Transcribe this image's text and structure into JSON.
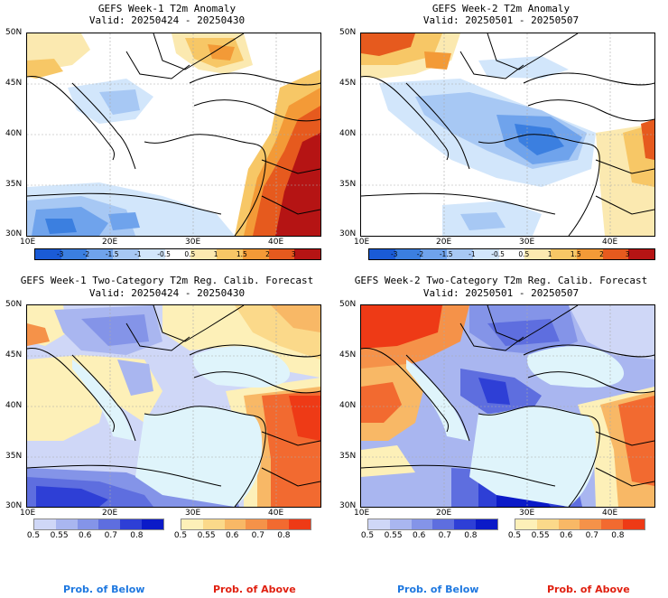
{
  "panels": [
    {
      "title1": "GEFS Week-1 T2m Anomaly",
      "title2": "Valid: 20250424 - 20250430"
    },
    {
      "title1": "GEFS Week-2 T2m Anomaly",
      "title2": "Valid: 20250501 - 20250507"
    },
    {
      "title1": "GEFS Week-1 Two-Category T2m Reg. Calib. Forecast",
      "title2": "Valid: 20250424 - 20250430"
    },
    {
      "title1": "GEFS Week-2 Two-Category T2m Reg. Calib. Forecast",
      "title2": "Valid: 20250501 - 20250507"
    }
  ],
  "lat_labels": [
    "50N",
    "45N",
    "40N",
    "35N",
    "30N"
  ],
  "lon_labels": [
    "10E",
    "20E",
    "30E",
    "40E"
  ],
  "anomaly_colorbar": {
    "ticks": [
      "-3",
      "-2",
      "-1.5",
      "-1",
      "-0.5",
      "0.5",
      "1",
      "1.5",
      "2",
      "3"
    ],
    "colors": [
      "#1a5bd6",
      "#3b7fe0",
      "#6fa3ec",
      "#a7c8f4",
      "#d2e6fb",
      "#ffffff",
      "#fbe9b0",
      "#f7c766",
      "#f39a37",
      "#e65a1e",
      "#b51414"
    ]
  },
  "prob_below": {
    "ticks": [
      "0.5",
      "0.55",
      "0.6",
      "0.7",
      "0.8"
    ],
    "colors": [
      "#cfd7f7",
      "#a9b6f0",
      "#8494e8",
      "#5e6edf",
      "#2e3fd6",
      "#0b1ac8"
    ],
    "label": "Prob. of Below",
    "label_color": "#1e78e0"
  },
  "prob_above": {
    "ticks": [
      "0.5",
      "0.55",
      "0.6",
      "0.7",
      "0.8"
    ],
    "colors": [
      "#fdf0b8",
      "#fbd98a",
      "#f8b866",
      "#f59249",
      "#f26a30",
      "#ee3a16"
    ],
    "label": "Prob. of Above",
    "label_color": "#e02010"
  }
}
